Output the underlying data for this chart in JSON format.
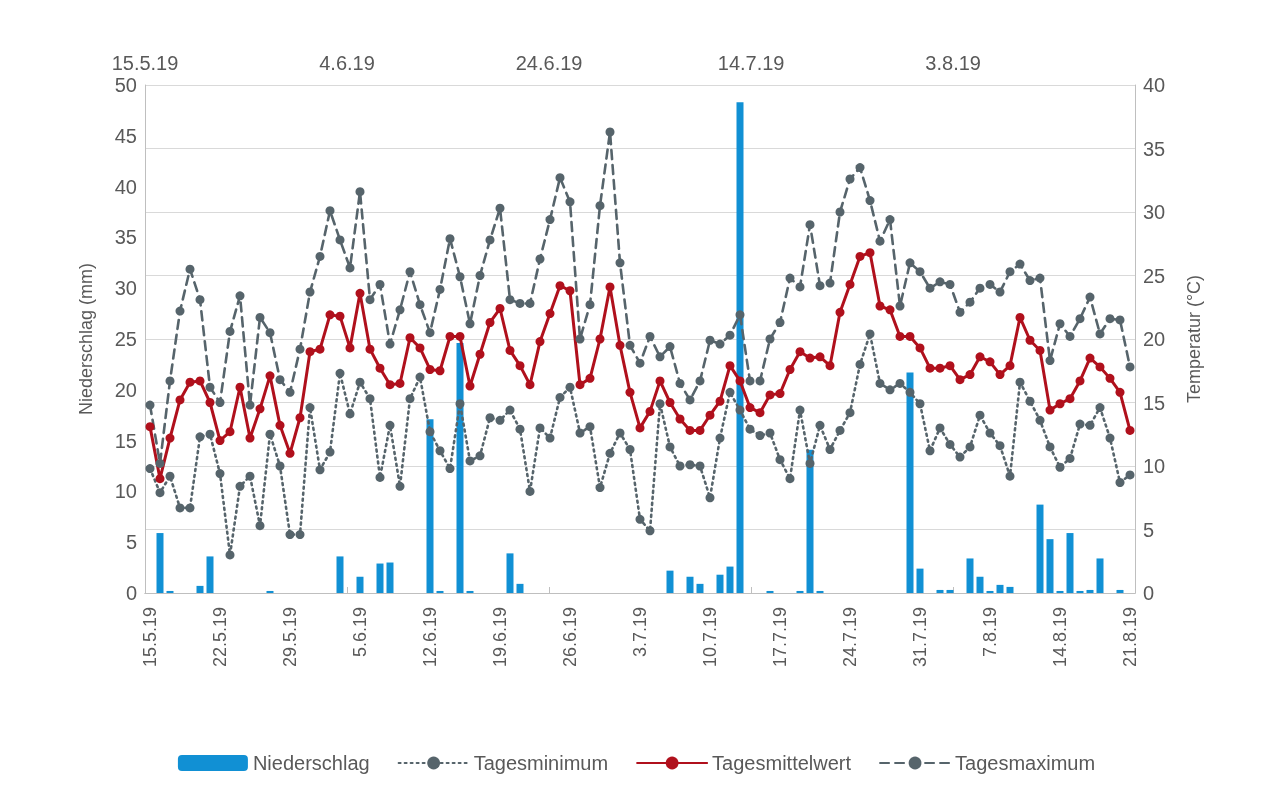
{
  "chart_data": {
    "type": "bar",
    "ylabel": "Niederschlag (mm)",
    "y2label": "Temperatur (°C)",
    "categories": [
      "15.5.19",
      null,
      null,
      null,
      null,
      null,
      null,
      "22.5.19",
      null,
      null,
      null,
      null,
      null,
      null,
      "29.5.19",
      null,
      null,
      null,
      null,
      null,
      null,
      "5.6.19",
      null,
      null,
      null,
      null,
      null,
      null,
      "12.6.19",
      null,
      null,
      null,
      null,
      null,
      null,
      "19.6.19",
      null,
      null,
      null,
      null,
      null,
      null,
      "26.6.19",
      null,
      null,
      null,
      null,
      null,
      null,
      "3.7.19",
      null,
      null,
      null,
      null,
      null,
      null,
      "10.7.19",
      null,
      null,
      null,
      null,
      null,
      null,
      "17.7.19",
      null,
      null,
      null,
      null,
      null,
      null,
      "24.7.19",
      null,
      null,
      null,
      null,
      null,
      null,
      "31.7.19",
      null,
      null,
      null,
      null,
      null,
      null,
      "7.8.19",
      null,
      null,
      null,
      null,
      null,
      null,
      "14.8.19",
      null,
      null,
      null,
      null,
      null,
      null,
      "21.8.19"
    ],
    "series": [
      {
        "name": "Niederschlag",
        "color": "#1190d4",
        "values": [
          0,
          5.9,
          0.2,
          0,
          0,
          0.7,
          3.6,
          0,
          0,
          0,
          0,
          0,
          0.2,
          0,
          0,
          0,
          0,
          0,
          0,
          3.6,
          0,
          1.6,
          0,
          2.9,
          3.0,
          0,
          0,
          0,
          17.1,
          0.2,
          0,
          24.6,
          0.2,
          0,
          0,
          0,
          3.9,
          0.9,
          0,
          0,
          0,
          0,
          0,
          0,
          0,
          0,
          0,
          0,
          0,
          0,
          0,
          0,
          2.2,
          0,
          1.6,
          0.9,
          0,
          1.8,
          2.6,
          48.3,
          0,
          0,
          0.2,
          0,
          0,
          0.2,
          14.1,
          0.2,
          0,
          0,
          0,
          0,
          0,
          0,
          0,
          0,
          21.7,
          2.4,
          0,
          0.3,
          0.3,
          0,
          3.4,
          1.6,
          0.2,
          0.8,
          0.6,
          0,
          0,
          8.7,
          5.3,
          0.2,
          5.9,
          0.2,
          0.3,
          3.4,
          0,
          0.3,
          0
        ]
      },
      {
        "name": "Tagesminimum",
        "type": "line",
        "axis": "y2",
        "line_style": "dotted",
        "color": "#56646b",
        "values": [
          9.8,
          7.9,
          9.2,
          6.7,
          6.7,
          12.3,
          12.5,
          9.4,
          3.0,
          8.4,
          9.2,
          5.3,
          12.5,
          10.0,
          4.6,
          4.6,
          14.6,
          9.7,
          11.1,
          17.3,
          14.1,
          16.6,
          15.3,
          9.1,
          13.2,
          8.4,
          15.3,
          17.0,
          12.7,
          11.2,
          9.8,
          14.9,
          10.4,
          10.8,
          13.8,
          13.6,
          14.4,
          12.9,
          8.0,
          13.0,
          12.2,
          15.4,
          16.2,
          12.6,
          13.1,
          8.3,
          11.0,
          12.6,
          11.3,
          5.8,
          4.9,
          14.9,
          11.5,
          10.0,
          10.1,
          10.0,
          7.5,
          12.2,
          15.8,
          14.4,
          12.9,
          12.4,
          12.6,
          10.5,
          9.0,
          14.4,
          10.2,
          13.2,
          11.3,
          12.8,
          14.2,
          18.0,
          20.4,
          16.5,
          16.0,
          16.5,
          15.8,
          14.9,
          11.2,
          13.0,
          11.7,
          10.7,
          11.5,
          14.0,
          12.6,
          11.6,
          9.2,
          16.6,
          15.1,
          13.6,
          11.5,
          9.9,
          10.6,
          13.3,
          13.2,
          14.6,
          12.2,
          8.7,
          9.3
        ]
      },
      {
        "name": "Tagesmittelwert",
        "type": "line",
        "axis": "y2",
        "line_style": "solid",
        "color": "#b0101c",
        "values": [
          13.1,
          9.0,
          12.2,
          15.2,
          16.6,
          16.7,
          15.0,
          12.0,
          12.7,
          16.2,
          12.2,
          14.5,
          17.1,
          13.2,
          11.0,
          13.8,
          19.0,
          19.2,
          21.9,
          21.8,
          19.3,
          23.6,
          19.2,
          17.7,
          16.4,
          16.5,
          20.1,
          19.3,
          17.6,
          17.5,
          20.2,
          20.2,
          16.3,
          18.8,
          21.3,
          22.4,
          19.1,
          17.9,
          16.4,
          19.8,
          22.0,
          24.2,
          23.8,
          16.4,
          16.9,
          20.0,
          24.1,
          19.5,
          15.8,
          13.0,
          14.3,
          16.7,
          15.0,
          13.7,
          12.8,
          12.8,
          14.0,
          15.1,
          17.9,
          16.7,
          14.6,
          14.2,
          15.6,
          15.7,
          17.6,
          19.0,
          18.5,
          18.6,
          17.9,
          22.1,
          24.3,
          26.5,
          26.8,
          22.6,
          22.3,
          20.2,
          20.2,
          19.3,
          17.7,
          17.7,
          17.9,
          16.8,
          17.2,
          18.6,
          18.2,
          17.2,
          17.9,
          21.7,
          19.9,
          19.1,
          14.4,
          14.9,
          15.3,
          16.7,
          18.5,
          17.8,
          16.9,
          15.8,
          12.8
        ]
      },
      {
        "name": "Tagesmaximum",
        "type": "line",
        "axis": "y2",
        "line_style": "dashed",
        "color": "#56646b",
        "values": [
          14.8,
          10.2,
          16.7,
          22.2,
          25.5,
          23.1,
          16.2,
          15.0,
          20.6,
          23.4,
          14.8,
          21.7,
          20.5,
          16.8,
          15.8,
          19.2,
          23.7,
          26.5,
          30.1,
          27.8,
          25.6,
          31.6,
          23.1,
          24.3,
          19.6,
          22.3,
          25.3,
          22.7,
          20.5,
          23.9,
          27.9,
          24.9,
          21.2,
          25.0,
          27.8,
          30.3,
          23.1,
          22.8,
          22.8,
          26.3,
          29.4,
          32.7,
          30.8,
          20.0,
          22.7,
          30.5,
          36.3,
          26.0,
          19.5,
          18.1,
          20.2,
          18.6,
          19.4,
          16.5,
          15.2,
          16.7,
          19.9,
          19.6,
          20.3,
          21.9,
          16.7,
          16.7,
          20.0,
          21.3,
          24.8,
          24.1,
          29.0,
          24.2,
          24.4,
          30.0,
          32.6,
          33.5,
          30.9,
          27.7,
          29.4,
          22.6,
          26.0,
          25.3,
          24.0,
          24.5,
          24.3,
          22.1,
          22.9,
          24.0,
          24.3,
          23.7,
          25.3,
          25.9,
          24.6,
          24.8,
          18.3,
          21.2,
          20.2,
          21.6,
          23.3,
          20.4,
          21.6,
          21.5,
          17.8
        ]
      }
    ],
    "ylim": [
      0,
      50
    ],
    "yticks": [
      0,
      5,
      10,
      15,
      20,
      25,
      30,
      35,
      40,
      45,
      50
    ],
    "y2lim": [
      0,
      40
    ],
    "y2ticks": [
      0,
      5,
      10,
      15,
      20,
      25,
      30,
      35,
      40
    ],
    "x2lim": [
      "2019-05-15",
      "2019-08-21"
    ],
    "x2ticks": [
      {
        "value": "2019-05-15",
        "label": "15.5.19"
      },
      {
        "value": "2019-06-04",
        "label": "4.6.19"
      },
      {
        "value": "2019-06-24",
        "label": "24.6.19"
      },
      {
        "value": "2019-07-14",
        "label": "14.7.19"
      },
      {
        "value": "2019-08-03",
        "label": "3.8.19"
      }
    ],
    "grid": "y",
    "legend": "bottom",
    "marker": "circle"
  }
}
